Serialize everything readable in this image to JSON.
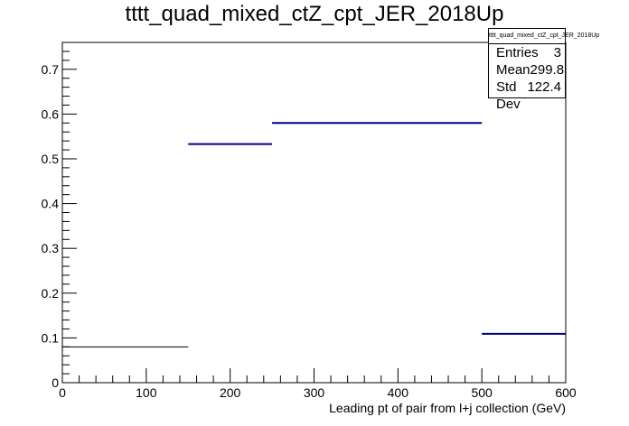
{
  "chart_data": {
    "type": "histogram",
    "title": "tttt_quad_mixed_ctZ_cpt_JER_2018Up",
    "xlabel": "Leading pt of pair from l+j collection (GeV)",
    "ylabel": "",
    "xlim": [
      0,
      600
    ],
    "ylim": [
      0,
      0.76
    ],
    "x_ticks": [
      0,
      100,
      200,
      300,
      400,
      500,
      600
    ],
    "y_ticks": [
      0,
      0.1,
      0.2,
      0.3,
      0.4,
      0.5,
      0.6,
      0.7
    ],
    "bins": [
      {
        "x0": 0,
        "x1": 150,
        "value": 0.08,
        "color": "#000000"
      },
      {
        "x0": 150,
        "x1": 250,
        "value": 0.533,
        "color": "#000080"
      },
      {
        "x0": 250,
        "x1": 500,
        "value": 0.58,
        "color": "#000080"
      },
      {
        "x0": 500,
        "x1": 600,
        "value": 0.109,
        "color": "#000080"
      }
    ],
    "grid": false
  },
  "stats": {
    "title": "tttt_quad_mixed_ctZ_cpt_JER_2018Up",
    "rows": [
      {
        "label": "Entries",
        "value": "3"
      },
      {
        "label": "Mean",
        "value": "299.8"
      },
      {
        "label": "Std Dev",
        "value": "122.4"
      }
    ]
  }
}
